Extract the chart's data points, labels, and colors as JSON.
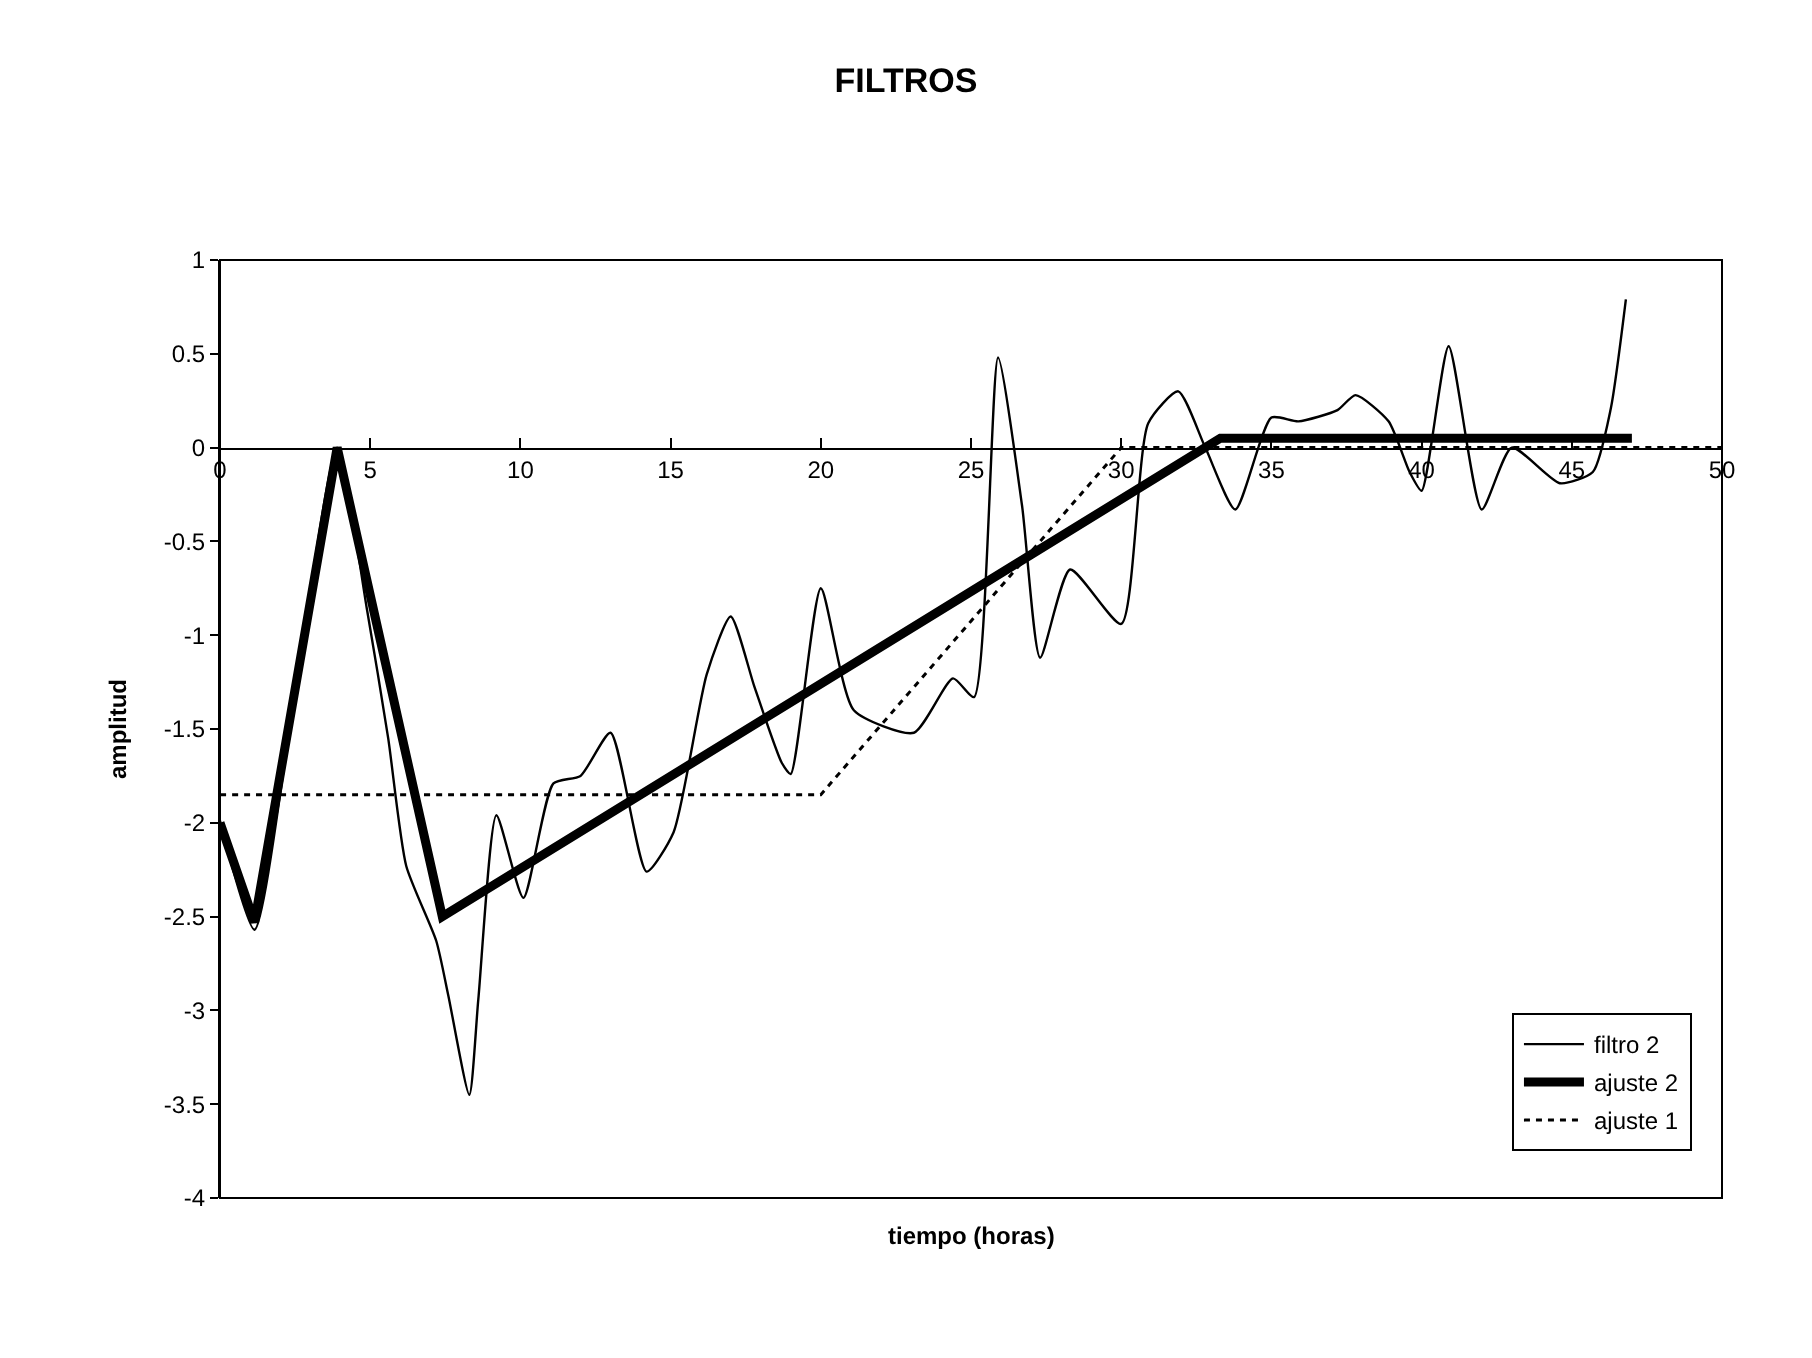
{
  "chart_data": {
    "type": "line",
    "title": "FILTROS",
    "xlabel": "tiempo (horas)",
    "ylabel": "amplitud",
    "xlim": [
      0,
      50
    ],
    "xticks": [
      0,
      5,
      10,
      15,
      20,
      25,
      30,
      35,
      40,
      45,
      50
    ],
    "ylim": [
      -4,
      1
    ],
    "yticks": [
      -4,
      -3.5,
      -3,
      -2.5,
      -2,
      -1.5,
      -1,
      -0.5,
      0,
      0.5,
      1
    ],
    "grid": false,
    "legend": "bottom right",
    "marker": "none",
    "series": [
      {
        "name": "filtro 2",
        "color": "#000000",
        "line_style": "solid",
        "x": [
          0,
          1.15,
          2.5,
          3.9,
          4.9,
          5.6,
          6.2,
          7.2,
          7.6,
          8.3,
          8.6,
          9.2,
          10.1,
          11.1,
          12,
          13,
          14.2,
          15.1,
          16.2,
          17,
          17.8,
          18.7,
          19,
          20,
          21.1,
          23.1,
          24.4,
          25.1,
          25.9,
          26.7,
          27.3,
          28.3,
          30,
          30.9,
          31.9,
          32.8,
          33.8,
          35,
          35.9,
          37.2,
          37.8,
          38.9,
          39.6,
          40,
          40.9,
          42,
          43,
          44.6,
          45.7,
          46.3,
          46.8
        ],
        "values": [
          -1.99,
          -2.57,
          -1.3,
          0,
          -0.87,
          -1.55,
          -2.23,
          -2.63,
          -2.92,
          -3.45,
          -2.94,
          -1.96,
          -2.4,
          -1.79,
          -1.75,
          -1.52,
          -2.26,
          -2.05,
          -1.21,
          -0.9,
          -1.28,
          -1.68,
          -1.74,
          -0.75,
          -1.4,
          -1.52,
          -1.23,
          -1.33,
          0.48,
          -0.31,
          -1.12,
          -0.65,
          -0.94,
          0.13,
          0.3,
          0,
          -0.33,
          0.16,
          0.14,
          0.2,
          0.28,
          0.14,
          -0.13,
          -0.23,
          0.54,
          -0.33,
          0,
          -0.19,
          -0.13,
          0.21,
          0.79
        ]
      },
      {
        "name": "ajuste 2",
        "color": "#000000",
        "line_style": "solid",
        "x": [
          0,
          1.15,
          3.9,
          7.4,
          33.3,
          47
        ],
        "values": [
          -2,
          -2.53,
          0,
          -2.5,
          0.05,
          0.05
        ]
      },
      {
        "name": "ajuste 1",
        "color": "#000000",
        "line_style": "dotted",
        "x": [
          0,
          20,
          30,
          50
        ],
        "values": [
          -1.85,
          -1.85,
          0,
          0
        ]
      }
    ]
  }
}
